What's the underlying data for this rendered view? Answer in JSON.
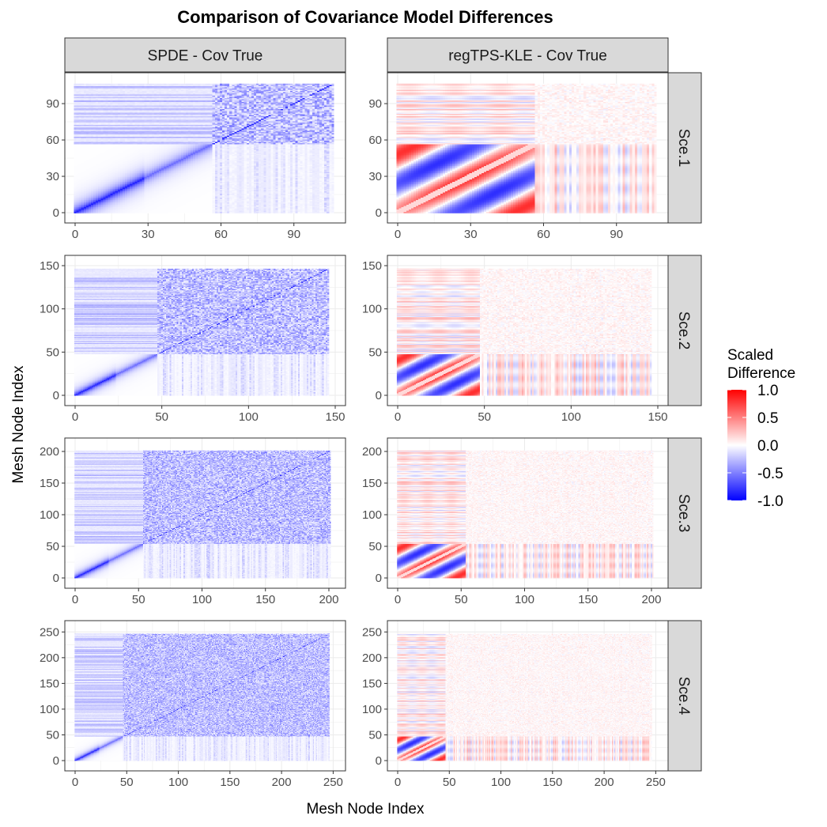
{
  "chart_data": {
    "type": "heatmap",
    "title": "Comparison of Covariance Model Differences",
    "xlabel": "Mesh Node Index",
    "ylabel": "Mesh Node Index",
    "columns": [
      "SPDE - Cov True",
      "regTPS-KLE - Cov True"
    ],
    "rows": [
      {
        "label": "Sce.1",
        "n": 107,
        "split": 57,
        "ticks": [
          0,
          30,
          60,
          90
        ],
        "lim": [
          0,
          107
        ]
      },
      {
        "label": "Sce.2",
        "n": 147,
        "split": 48,
        "ticks": [
          0,
          50,
          100,
          150
        ],
        "lim": [
          0,
          150
        ]
      },
      {
        "label": "Sce.3",
        "n": 202,
        "split": 54,
        "ticks": [
          0,
          50,
          100,
          150,
          200
        ],
        "lim": [
          0,
          205
        ]
      },
      {
        "label": "Sce.4",
        "n": 247,
        "split": 47,
        "ticks": [
          0,
          50,
          100,
          150,
          200,
          250
        ],
        "lim": [
          0,
          252
        ]
      }
    ],
    "legend": {
      "title_line1": "Scaled",
      "title_line2": "Difference",
      "range": [
        -1.0,
        1.0
      ],
      "breaks": [
        1.0,
        0.5,
        0.0,
        -0.5,
        -1.0
      ],
      "break_labels": [
        "1.0",
        "0.5",
        "0.0",
        "-0.5",
        "-1.0"
      ],
      "position": "right"
    },
    "colors": {
      "low": "#0000ff",
      "mid": "#ffffff",
      "high": "#ff0000"
    }
  },
  "colors": {
    "strip_fill": "#d9d9d9",
    "panel_border": "#333333",
    "grid": "#ebebeb"
  }
}
